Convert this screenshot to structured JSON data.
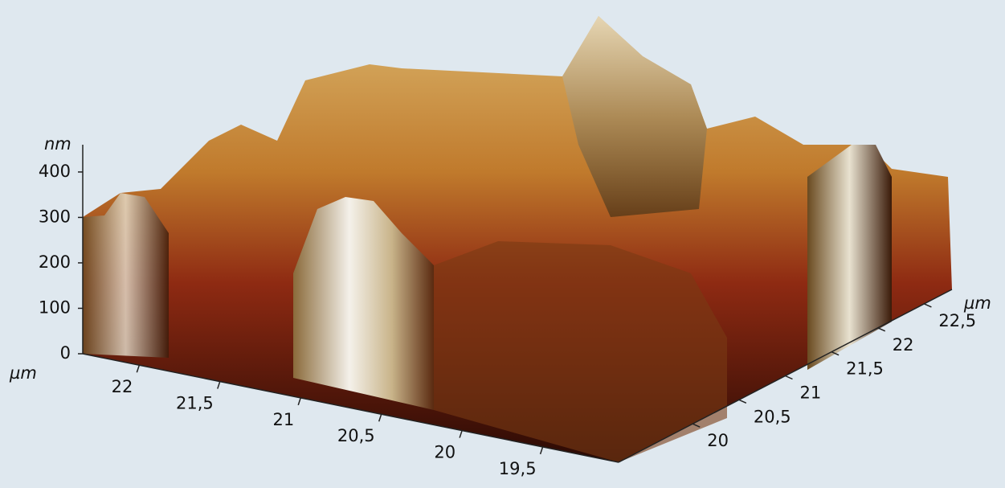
{
  "chart_data": {
    "type": "surface",
    "z_label": "nm",
    "x_label": "µm",
    "y_label": "µm",
    "zlim": [
      0,
      460
    ],
    "zticks": [
      0,
      100,
      200,
      300,
      400
    ],
    "xlim": [
      22.35,
      19.03
    ],
    "xticks": [
      {
        "value": 22,
        "label": "22"
      },
      {
        "value": 21.5,
        "label": "21,5"
      },
      {
        "value": 21,
        "label": "21"
      },
      {
        "value": 20.5,
        "label": "20,5"
      },
      {
        "value": 20,
        "label": "20"
      },
      {
        "value": 19.5,
        "label": "19,5"
      }
    ],
    "ylim": [
      19.2,
      22.8
    ],
    "yticks": [
      {
        "value": 20,
        "label": "20"
      },
      {
        "value": 20.5,
        "label": "20,5"
      },
      {
        "value": 21,
        "label": "21"
      },
      {
        "value": 21.5,
        "label": "21,5"
      },
      {
        "value": 22,
        "label": "22"
      },
      {
        "value": 22.5,
        "label": "22,5"
      }
    ]
  }
}
